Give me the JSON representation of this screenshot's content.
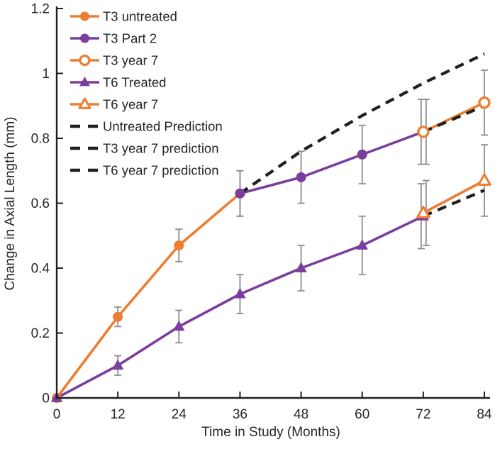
{
  "chart_data": {
    "type": "line",
    "title": "",
    "xlabel": "Time in Study (Months)",
    "ylabel": "Change in Axial Length (mm)",
    "xlim": [
      0,
      84
    ],
    "ylim": [
      0,
      1.2
    ],
    "xticks": {
      "values": [
        0,
        12,
        24,
        36,
        48,
        60,
        72,
        84
      ],
      "labels": [
        "0",
        "12",
        "24",
        "36",
        "48",
        "60",
        "72",
        "84"
      ]
    },
    "yticks": {
      "values": [
        0,
        0.2,
        0.4,
        0.6,
        0.8,
        1,
        1.2
      ],
      "labels": [
        "0",
        "0.2",
        "0.4",
        "0.6",
        "0.8",
        "1",
        "1.2"
      ]
    },
    "grid": false,
    "legend_position": "top-left-inside",
    "colors": {
      "orange": "#ED7D31",
      "purple": "#7A3E9D",
      "prediction_black": "#1F1F1F",
      "error_bar": "#8C8C8C",
      "axis": "#1F1F1F",
      "text": "#262626"
    },
    "series": [
      {
        "name": "T3 untreated",
        "color": "#ED7D31",
        "marker": "circle",
        "marker_style": "filled",
        "line": "solid",
        "x": [
          0,
          12,
          24,
          36
        ],
        "y": [
          0,
          0.25,
          0.47,
          0.63
        ],
        "err": [
          null,
          0.03,
          0.05,
          0.07
        ]
      },
      {
        "name": "T3 Part 2",
        "color": "#7A3E9D",
        "marker": "circle",
        "marker_style": "filled",
        "line": "solid",
        "x": [
          36,
          48,
          60,
          72
        ],
        "y": [
          0.63,
          0.68,
          0.75,
          0.82
        ],
        "err": [
          0.07,
          0.08,
          0.09,
          0.1
        ],
        "err_dx": [
          0,
          0,
          0,
          -3
        ]
      },
      {
        "name": "T3 year 7",
        "color": "#ED7D31",
        "marker": "circle",
        "marker_style": "open",
        "line": "solid",
        "x": [
          72,
          84
        ],
        "y": [
          0.82,
          0.91
        ],
        "err": [
          0.1,
          0.1
        ],
        "err_dx": [
          4,
          0
        ]
      },
      {
        "name": "T6 Treated",
        "color": "#7A3E9D",
        "marker": "triangle",
        "marker_style": "filled",
        "line": "solid",
        "x": [
          0,
          12,
          24,
          36,
          48,
          60,
          72
        ],
        "y": [
          0,
          0.1,
          0.22,
          0.32,
          0.4,
          0.47,
          0.56
        ],
        "err": [
          null,
          0.03,
          0.05,
          0.06,
          0.07,
          0.09,
          0.1
        ],
        "err_dx": [
          0,
          0,
          0,
          0,
          0,
          0,
          -3
        ]
      },
      {
        "name": "T6 year 7",
        "color": "#ED7D31",
        "marker": "triangle",
        "marker_style": "open",
        "line": "solid",
        "x": [
          72,
          84
        ],
        "y": [
          0.57,
          0.67
        ],
        "err": [
          0.1,
          0.11
        ],
        "err_dx": [
          4,
          0
        ]
      },
      {
        "name": "Untreated Prediction",
        "color": "#1F1F1F",
        "marker": "none",
        "marker_style": "none",
        "line": "dashed",
        "x": [
          36,
          48,
          60,
          72,
          84
        ],
        "y": [
          0.63,
          0.76,
          0.87,
          0.97,
          1.06
        ]
      },
      {
        "name": "T3 year 7 prediction",
        "color": "#1F1F1F",
        "marker": "none",
        "marker_style": "none",
        "line": "dashed",
        "x": [
          72,
          84
        ],
        "y": [
          0.82,
          0.9
        ]
      },
      {
        "name": "T6 year 7 prediction",
        "color": "#1F1F1F",
        "marker": "none",
        "marker_style": "none",
        "line": "dashed",
        "x": [
          72,
          84
        ],
        "y": [
          0.56,
          0.64
        ]
      }
    ]
  }
}
